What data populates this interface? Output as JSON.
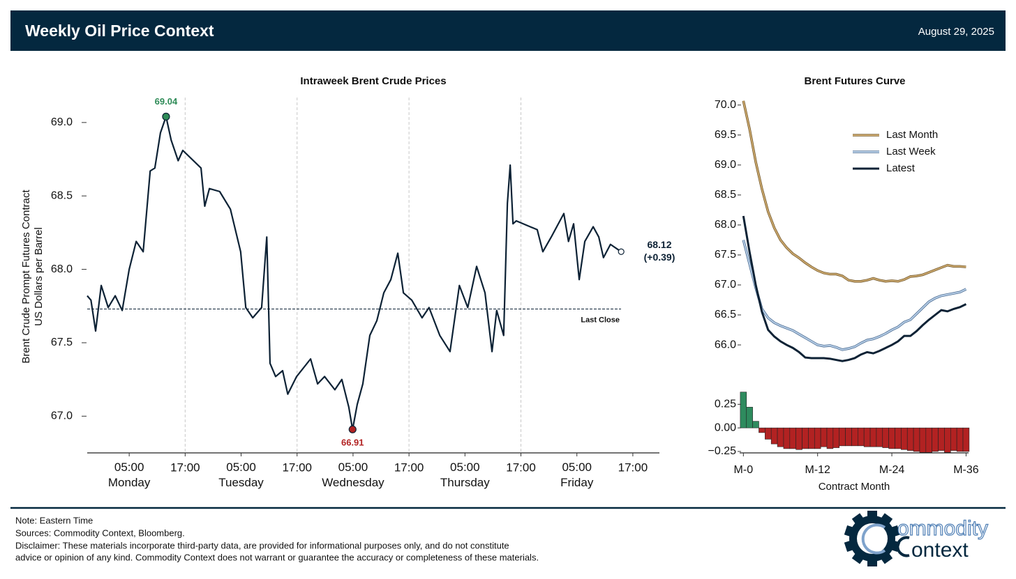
{
  "header": {
    "title": "Weekly Oil Price Context",
    "date": "August 29, 2025"
  },
  "chart_data": [
    {
      "type": "line",
      "title": "Intraweek Brent Crude Prices",
      "y_label": [
        "Brent Crude Prompt Futures Contract",
        "US Dollars per Barrel"
      ],
      "color": "#0d2235",
      "x": [
        -4.0,
        -3.2,
        -2.2,
        -1.0,
        0.5,
        2.0,
        3.5,
        5.0,
        6.5,
        8.0,
        9.5,
        10.5,
        11.7,
        12.9,
        14.0,
        15.5,
        16.5,
        20.4,
        21.2,
        22.2,
        24.4,
        26.7,
        28.9,
        30.0,
        31.5,
        33.4,
        34.5,
        35.2,
        36.4,
        37.9,
        39.0,
        40.9,
        43.9,
        45.4,
        46.9,
        49.1,
        50.6,
        52.1,
        52.9,
        53.9,
        55.1,
        56.6,
        58.1,
        59.6,
        61.1,
        62.6,
        63.8,
        65.6,
        67.8,
        69.3,
        71.6,
        73.8,
        75.8,
        77.6,
        79.5,
        81.3,
        82.8,
        83.8,
        85.3,
        86.1,
        86.7,
        87.3,
        88.0,
        92.5,
        93.7,
        95.5,
        98.2,
        99.2,
        100.3,
        101.5,
        102.7,
        104.5,
        105.7,
        106.7,
        108.2,
        110.5
      ],
      "values": [
        67.82,
        67.79,
        67.58,
        67.89,
        67.74,
        67.82,
        67.72,
        68.0,
        68.19,
        68.12,
        68.67,
        68.69,
        68.93,
        69.04,
        68.88,
        68.74,
        68.81,
        68.69,
        68.43,
        68.55,
        68.53,
        68.41,
        68.12,
        67.74,
        67.67,
        67.74,
        68.22,
        67.36,
        67.27,
        67.31,
        67.15,
        67.27,
        67.39,
        67.22,
        67.27,
        67.18,
        67.25,
        67.06,
        66.91,
        67.08,
        67.22,
        67.55,
        67.65,
        67.84,
        67.93,
        68.11,
        67.84,
        67.79,
        67.67,
        67.74,
        67.55,
        67.44,
        67.89,
        67.74,
        68.02,
        67.84,
        67.44,
        67.72,
        67.55,
        68.45,
        68.71,
        68.31,
        68.33,
        68.27,
        68.12,
        68.22,
        68.38,
        68.19,
        68.31,
        67.93,
        68.19,
        68.29,
        68.22,
        68.08,
        68.17,
        68.12
      ],
      "xlim": [
        -4.0,
        118.7
      ],
      "xticks": [
        {
          "value": 5,
          "label": "05:00\nMonday"
        },
        {
          "value": 17,
          "label": "17:00"
        },
        {
          "value": 29,
          "label": "05:00\nTuesday"
        },
        {
          "value": 41,
          "label": "17:00"
        },
        {
          "value": 53,
          "label": "05:00\nWednesday"
        },
        {
          "value": 65,
          "label": "17:00"
        },
        {
          "value": 77,
          "label": "05:00\nThursday"
        },
        {
          "value": 89,
          "label": "17:00"
        },
        {
          "value": 101,
          "label": "05:00\nFriday"
        },
        {
          "value": 113,
          "label": "17:00"
        }
      ],
      "day_separators": [
        17,
        41,
        65,
        89
      ],
      "ylim": [
        66.75,
        69.17
      ],
      "yticks": [
        {
          "value": 67,
          "label": "67.0"
        },
        67.5,
        {
          "value": 68,
          "label": "68.0"
        },
        68.5,
        {
          "value": 69,
          "label": "69.0"
        }
      ],
      "reference_line": {
        "value": 67.73,
        "label": "Last Close"
      },
      "annotations": [
        {
          "x": 12.9,
          "y": 69.04,
          "label": "69.04",
          "color": "#2e8b57",
          "position": "above"
        },
        {
          "x": 52.9,
          "y": 66.91,
          "label": "66.91",
          "color": "#b22222",
          "position": "below"
        },
        {
          "x": 110.5,
          "y": 68.12,
          "label": "68.12",
          "change_label": "(+0.39)",
          "color": "#ffffff",
          "position": "right"
        }
      ]
    },
    {
      "type": "line",
      "title": "Brent Futures Curve",
      "legend": "upper right",
      "x": [
        0,
        1,
        2,
        3,
        4,
        5,
        6,
        7,
        8,
        9,
        10,
        11,
        12,
        13,
        14,
        15,
        16,
        17,
        18,
        19,
        20,
        21,
        22,
        23,
        24,
        25,
        26,
        27,
        28,
        29,
        30,
        31,
        32,
        33,
        34,
        35,
        36
      ],
      "xlim": [
        -0.6,
        36.4
      ],
      "ylim": [
        65.71,
        70.09
      ],
      "yticks": [
        {
          "value": 66,
          "label": "66.0"
        },
        66.5,
        {
          "value": 67,
          "label": "67.0"
        },
        67.5,
        {
          "value": 68,
          "label": "68.0"
        },
        68.5,
        {
          "value": 69,
          "label": "69.0"
        },
        69.5,
        {
          "value": 70,
          "label": "70.0"
        }
      ],
      "series": [
        {
          "name": "Last Month",
          "color": "#c9a66b",
          "edge": "#7a6035",
          "values": [
            70.07,
            69.6,
            69.05,
            68.6,
            68.22,
            67.95,
            67.75,
            67.62,
            67.52,
            67.45,
            67.37,
            67.3,
            67.24,
            67.2,
            67.18,
            67.18,
            67.15,
            67.08,
            67.06,
            67.06,
            67.08,
            67.11,
            67.08,
            67.06,
            67.07,
            67.06,
            67.09,
            67.14,
            67.15,
            67.17,
            67.21,
            67.25,
            67.29,
            67.33,
            67.31,
            67.31,
            67.3
          ]
        },
        {
          "name": "Last Week",
          "color": "#b6cde6",
          "edge": "#4f6f94",
          "values": [
            67.75,
            67.35,
            66.95,
            66.6,
            66.45,
            66.37,
            66.32,
            66.28,
            66.24,
            66.18,
            66.12,
            66.06,
            66.0,
            65.98,
            65.99,
            65.96,
            65.92,
            65.94,
            65.97,
            66.03,
            66.08,
            66.1,
            66.14,
            66.19,
            66.25,
            66.3,
            66.38,
            66.42,
            66.52,
            66.62,
            66.72,
            66.78,
            66.82,
            66.84,
            66.86,
            66.88,
            66.93
          ]
        },
        {
          "name": "Latest",
          "color": "#0d2235",
          "values": [
            68.15,
            67.55,
            67.0,
            66.55,
            66.25,
            66.14,
            66.06,
            66.0,
            65.95,
            65.88,
            65.79,
            65.78,
            65.78,
            65.78,
            65.77,
            65.75,
            65.73,
            65.75,
            65.78,
            65.84,
            65.88,
            65.86,
            65.9,
            65.95,
            66.0,
            66.06,
            66.15,
            66.15,
            66.23,
            66.33,
            66.42,
            66.5,
            66.58,
            66.56,
            66.6,
            66.63,
            66.68
          ]
        }
      ]
    },
    {
      "type": "bar",
      "x_label": "Contract Month",
      "x": [
        0,
        1,
        2,
        3,
        4,
        5,
        6,
        7,
        8,
        9,
        10,
        11,
        12,
        13,
        14,
        15,
        16,
        17,
        18,
        19,
        20,
        21,
        22,
        23,
        24,
        25,
        26,
        27,
        28,
        29,
        30,
        31,
        32,
        33,
        34,
        35,
        36
      ],
      "values": [
        0.38,
        0.22,
        0.07,
        -0.05,
        -0.12,
        -0.17,
        -0.2,
        -0.22,
        -0.22,
        -0.23,
        -0.22,
        -0.22,
        -0.22,
        -0.2,
        -0.22,
        -0.21,
        -0.19,
        -0.19,
        -0.19,
        -0.19,
        -0.2,
        -0.2,
        -0.2,
        -0.21,
        -0.22,
        -0.22,
        -0.23,
        -0.24,
        -0.25,
        -0.26,
        -0.26,
        -0.25,
        -0.24,
        -0.26,
        -0.24,
        -0.25,
        -0.25
      ],
      "positive_color": "#2e8b5e",
      "negative_color": "#b22222",
      "xlim": [
        -0.6,
        36.4
      ],
      "xticks": [
        {
          "value": 0,
          "label": "M-0"
        },
        {
          "value": 12,
          "label": "M-12"
        },
        {
          "value": 24,
          "label": "M-24"
        },
        {
          "value": 36,
          "label": "M-36"
        }
      ],
      "ylim": [
        -0.265,
        0.4
      ],
      "yticks": [
        {
          "value": -0.25,
          "label": "−0.25"
        },
        {
          "value": 0,
          "label": "0.00"
        },
        0.25
      ]
    }
  ],
  "footer": {
    "note": "Note: Eastern Time",
    "sources": "Sources: Commodity Context, Bloomberg.",
    "disclaimer": [
      "Disclaimer: These materials incorporate third-party data, are provided for informational purposes only, and do not constitute",
      "advice or opinion of any kind. Commodity Context does not warrant or guarantee the accuracy or completeness of these materials."
    ]
  },
  "logo": [
    "ommodity",
    "ontext"
  ]
}
